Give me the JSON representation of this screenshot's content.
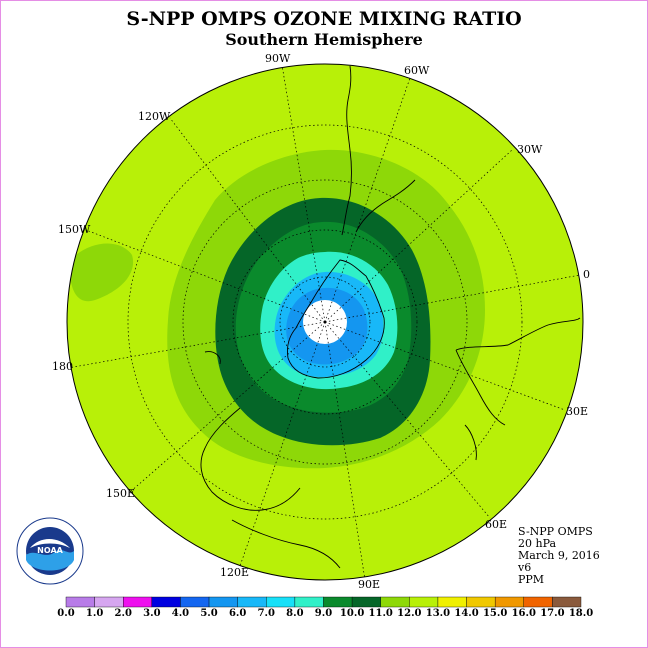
{
  "title": "S-NPP OMPS OZONE MIXING RATIO",
  "subtitle": "Southern Hemisphere",
  "longitude_labels": {
    "lon_90w": "90W",
    "lon_60w": "60W",
    "lon_30w": "30W",
    "lon_0": "0",
    "lon_30e": "30E",
    "lon_60e": "60E",
    "lon_90e": "90E",
    "lon_120e": "120E",
    "lon_150e": "150E",
    "lon_180": "180",
    "lon_150w": "150W",
    "lon_120w": "120W"
  },
  "info": {
    "instrument": "S-NPP OMPS",
    "level": "20 hPa",
    "date": "March 9, 2016",
    "version": "v6",
    "units": "PPM"
  },
  "logo": {
    "text": "NOAA",
    "ring_text": "NATIONAL OCEANIC AND ATMOSPHERIC ADMINISTRATION · U.S. DEPARTMENT OF COMMERCE"
  },
  "colorbar": {
    "ticks": [
      "0.0",
      "1.0",
      "2.0",
      "3.0",
      "4.0",
      "5.0",
      "6.0",
      "7.0",
      "8.0",
      "9.0",
      "10.0",
      "11.0",
      "12.0",
      "13.0",
      "14.0",
      "15.0",
      "16.0",
      "17.0",
      "18.0"
    ],
    "colors": [
      "#b87ce8",
      "#d6a6f0",
      "#ee10ee",
      "#0000e0",
      "#1466f0",
      "#1496f0",
      "#18b8f8",
      "#18e0f8",
      "#30f0c8",
      "#0a8a2c",
      "#056628",
      "#8ed808",
      "#b8f008",
      "#f0f000",
      "#f0c800",
      "#f09800",
      "#f06400",
      "#f00000",
      "#8a5a3c"
    ]
  },
  "chart_data": {
    "type": "heatmap",
    "projection": "polar stereographic, south pole centered",
    "variable": "ozone mixing ratio",
    "units": "PPM",
    "pressure_level": "20 hPa",
    "date": "March 9, 2016",
    "colorbar_range": [
      0.0,
      18.0
    ],
    "colorbar_step": 1.0,
    "field_description": [
      {
        "band": "no data at pole",
        "color": "#ffffff"
      },
      {
        "range": [
          4.0,
          6.0
        ],
        "color": "#1496f0"
      },
      {
        "range": [
          6.0,
          7.0
        ],
        "color": "#18b8f8"
      },
      {
        "range": [
          7.0,
          8.0
        ],
        "color": "#30f0c8"
      },
      {
        "range": [
          8.0,
          9.0
        ],
        "color": "#0a8a2c"
      },
      {
        "range": [
          9.0,
          10.0
        ],
        "color": "#056628"
      },
      {
        "range": [
          10.0,
          11.0
        ],
        "color": "#8ed808"
      },
      {
        "range": [
          11.0,
          12.0
        ],
        "color": "#b8f008"
      }
    ]
  }
}
